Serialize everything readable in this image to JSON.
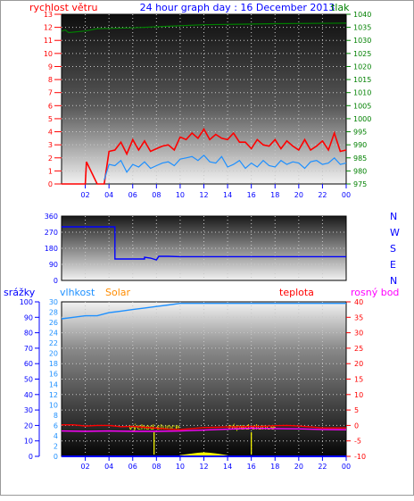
{
  "chart_data": [
    {
      "id": "wind",
      "type": "line",
      "title": "24 hour graph day : 16 December 2013",
      "left_label": "rychlost větru",
      "right_label": "tlak",
      "x_ticks": [
        "02",
        "04",
        "06",
        "08",
        "10",
        "12",
        "14",
        "16",
        "18",
        "20",
        "22",
        "00"
      ],
      "left_ticks": [
        "0",
        "1",
        "2",
        "3",
        "4",
        "5",
        "6",
        "7",
        "8",
        "9",
        "10",
        "11",
        "12",
        "13"
      ],
      "right_ticks": [
        "975",
        "980",
        "985",
        "990",
        "995",
        "1000",
        "1005",
        "1010",
        "1015",
        "1020",
        "1025",
        "1030",
        "1035",
        "1040"
      ],
      "ylim_left": [
        0,
        13
      ],
      "ylim_right": [
        975,
        1040
      ],
      "grid": true,
      "series": [
        {
          "axis": "left",
          "color": "#ff0000",
          "x": [
            0,
            1,
            2,
            2.1,
            3,
            3.6,
            4,
            4.5,
            5,
            5.5,
            6,
            6.5,
            7,
            7.5,
            8,
            8.5,
            9,
            9.5,
            10,
            10.5,
            11,
            11.5,
            12,
            12.5,
            13,
            13.5,
            14,
            14.5,
            15,
            15.5,
            16,
            16.5,
            17,
            17.5,
            18,
            18.5,
            19,
            19.5,
            20,
            20.5,
            21,
            21.5,
            22,
            22.5,
            23,
            23.5,
            24
          ],
          "y": [
            0,
            0,
            0,
            1.7,
            0,
            0,
            2.5,
            2.6,
            3.2,
            2.3,
            3.4,
            2.6,
            3.3,
            2.5,
            2.7,
            2.9,
            3,
            2.6,
            3.6,
            3.4,
            3.9,
            3.5,
            4.2,
            3.4,
            3.8,
            3.5,
            3.4,
            3.9,
            3.2,
            3.2,
            2.7,
            3.4,
            3,
            2.9,
            3.4,
            2.7,
            3.3,
            2.9,
            2.6,
            3.4,
            2.6,
            2.9,
            3.3,
            2.6,
            3.9,
            2.5,
            2.6
          ]
        },
        {
          "axis": "left",
          "color": "#1e90ff",
          "x": [
            3.6,
            4,
            4.5,
            5,
            5.5,
            6,
            6.5,
            7,
            7.5,
            8,
            8.5,
            9,
            9.5,
            10,
            10.5,
            11,
            11.5,
            12,
            12.5,
            13,
            13.5,
            14,
            14.5,
            15,
            15.5,
            16,
            16.5,
            17,
            17.5,
            18,
            18.5,
            19,
            19.5,
            20,
            20.5,
            21,
            21.5,
            22,
            22.5,
            23,
            23.5,
            24
          ],
          "y": [
            0.3,
            1.5,
            1.4,
            1.8,
            0.9,
            1.5,
            1.3,
            1.7,
            1.2,
            1.4,
            1.6,
            1.7,
            1.4,
            1.9,
            2,
            2.1,
            1.8,
            2.2,
            1.7,
            1.6,
            2.1,
            1.3,
            1.5,
            1.8,
            1.2,
            1.6,
            1.3,
            1.8,
            1.4,
            1.3,
            1.8,
            1.5,
            1.7,
            1.6,
            1.2,
            1.7,
            1.8,
            1.5,
            1.6,
            2,
            1.5,
            1.6
          ]
        },
        {
          "axis": "right",
          "color": "#008000",
          "x": [
            0,
            0.3,
            0.6,
            2,
            3,
            6,
            9,
            12,
            15,
            18,
            21,
            24
          ],
          "y": [
            1033.5,
            1034,
            1033,
            1033.6,
            1034.5,
            1034.8,
            1035.4,
            1036,
            1036.2,
            1036.4,
            1036.5,
            1036.6
          ]
        }
      ]
    },
    {
      "id": "direction",
      "type": "line",
      "left_ticks": [
        "0",
        "90",
        "180",
        "270",
        "360"
      ],
      "right_ticks": [
        "N",
        "E",
        "S",
        "W",
        "N"
      ],
      "ylim": [
        0,
        360
      ],
      "grid": true,
      "series": [
        {
          "color": "#0000ff",
          "x": [
            0,
            4.5,
            4.5,
            7,
            7,
            7.5,
            8,
            8.2,
            9,
            10,
            24
          ],
          "y": [
            300,
            300,
            120,
            120,
            130,
            125,
            115,
            135,
            135,
            133,
            133
          ]
        }
      ]
    },
    {
      "id": "climate",
      "type": "line",
      "labels": {
        "rain": "srážky",
        "humidity": "vlhkost",
        "solar": "Solar",
        "temperature": "teplota",
        "dewpoint": "rosný bod"
      },
      "x_ticks": [
        "02",
        "04",
        "06",
        "08",
        "10",
        "12",
        "14",
        "16",
        "18",
        "20",
        "22",
        "00"
      ],
      "rain_ticks": [
        "0",
        "10",
        "20",
        "30",
        "40",
        "50",
        "60",
        "70",
        "80",
        "90",
        "100"
      ],
      "humidity_ticks": [
        "0",
        "2",
        "4",
        "6",
        "8",
        "10",
        "12",
        "14",
        "16",
        "18",
        "20",
        "22",
        "24",
        "26",
        "28",
        "30"
      ],
      "temp_ticks": [
        "-10",
        "-5",
        "0",
        "5",
        "10",
        "15",
        "20",
        "25",
        "30",
        "35",
        "40"
      ],
      "sunrise_label": "východ slunce",
      "sunset_label": "západ slunce",
      "sunrise_x": 7.8,
      "sunset_x": 16,
      "ylim_humidity": [
        0,
        100
      ],
      "ylim_temp": [
        -10,
        40
      ],
      "grid": true,
      "series": [
        {
          "name": "vlhkost",
          "color": "#1e90ff",
          "axis": "humidity",
          "x": [
            0,
            1,
            2,
            3,
            4,
            5,
            6,
            7,
            8,
            9,
            10,
            11,
            12,
            14,
            16,
            18,
            20,
            22,
            24
          ],
          "y": [
            89,
            90,
            91,
            91,
            93,
            94,
            95,
            96,
            97,
            98,
            99,
            99,
            99,
            99,
            99,
            99,
            99,
            99,
            99
          ]
        },
        {
          "name": "teplota",
          "color": "#ff0000",
          "axis": "temp",
          "x": [
            0,
            1,
            2,
            3,
            4,
            5,
            6,
            7,
            8,
            9,
            10,
            11,
            12,
            13,
            14,
            15,
            16,
            17,
            18,
            19,
            20,
            21,
            22,
            23,
            24
          ],
          "y": [
            0.2,
            0.2,
            -0.2,
            0,
            0,
            -0.4,
            -0.3,
            -0.6,
            -0.9,
            -1.2,
            -1.3,
            -1,
            -0.7,
            -0.6,
            -0.5,
            -0.4,
            -0.3,
            -0.3,
            -0.1,
            0,
            -0.2,
            -0.5,
            -0.8,
            -0.8,
            -0.8
          ]
        },
        {
          "name": "rosný bod",
          "color": "#ff00ff",
          "axis": "temp",
          "x": [
            0,
            2,
            4,
            6,
            8,
            10,
            12,
            14,
            16,
            18,
            20,
            22,
            24
          ],
          "y": [
            -1.8,
            -1.9,
            -1.8,
            -1.9,
            -1.9,
            -1.8,
            -1.5,
            -1.2,
            -0.9,
            -1,
            -1.1,
            -1.3,
            -1.4
          ]
        },
        {
          "name": "Solar",
          "color": "#ffff00",
          "axis": "humidity",
          "x": [
            10,
            10.5,
            11,
            11.5,
            12,
            12.5,
            13,
            13.5,
            14
          ],
          "y": [
            0.5,
            1,
            1.5,
            2,
            2.3,
            2,
            1.6,
            1,
            0.4
          ]
        },
        {
          "name": "srážky",
          "color": "#0000ff",
          "axis": "humidity",
          "x": [
            0,
            24
          ],
          "y": [
            0,
            0
          ]
        }
      ]
    }
  ]
}
